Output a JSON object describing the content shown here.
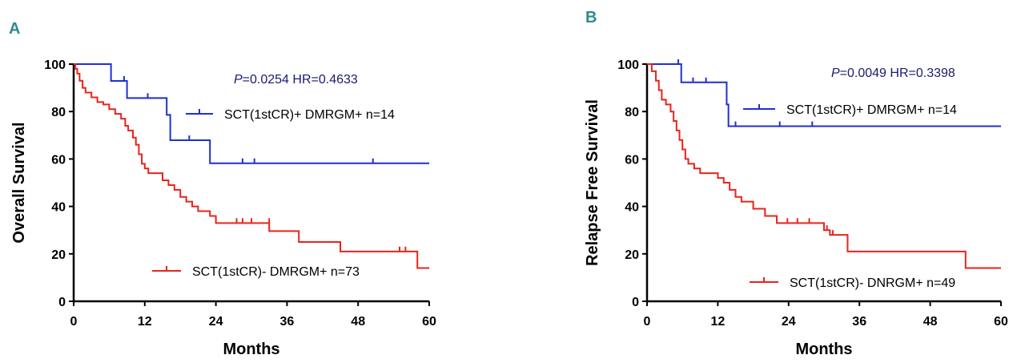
{
  "chart_data": [
    {
      "type": "line",
      "panel_label": "A",
      "title": "",
      "xlabel": "Months",
      "ylabel": "Overall Survival",
      "xlim": [
        0,
        60
      ],
      "ylim": [
        0,
        100
      ],
      "x_ticks": [
        0,
        12,
        24,
        36,
        48,
        60
      ],
      "y_ticks": [
        0,
        20,
        40,
        60,
        80,
        100
      ],
      "grid": false,
      "legend_position": "inside",
      "annotation": {
        "p_prefix": "P",
        "p_value": "=0.0254",
        "hr": "HR=0.4633"
      },
      "series": [
        {
          "name": "SCT(1stCR)+ DMRGM+ n=14",
          "color": "#1f2fd6",
          "steps": [
            [
              0,
              100
            ],
            [
              6.3,
              92.9
            ],
            [
              9,
              85.7
            ],
            [
              15.7,
              78.6
            ],
            [
              16.3,
              67.9
            ],
            [
              23,
              58.2
            ],
            [
              60,
              58.2
            ]
          ],
          "censors": [
            [
              8.5,
              92.9
            ],
            [
              12.5,
              85.7
            ],
            [
              19.5,
              67.9
            ],
            [
              28.5,
              58.2
            ],
            [
              30.5,
              58.2
            ],
            [
              50.5,
              58.2
            ]
          ]
        },
        {
          "name": "SCT(1stCR)- DMRGM+ n=73",
          "color": "#e8241c",
          "steps": [
            [
              0,
              100
            ],
            [
              0.3,
              98
            ],
            [
              0.6,
              96
            ],
            [
              1,
              93
            ],
            [
              1.5,
              90
            ],
            [
              2,
              88
            ],
            [
              3,
              86
            ],
            [
              4,
              84
            ],
            [
              5,
              83
            ],
            [
              6,
              81
            ],
            [
              7,
              79
            ],
            [
              8,
              77
            ],
            [
              8.7,
              74
            ],
            [
              9.2,
              72
            ],
            [
              10,
              69
            ],
            [
              10.5,
              66
            ],
            [
              11,
              62
            ],
            [
              11.5,
              58
            ],
            [
              12,
              56
            ],
            [
              12.6,
              54
            ],
            [
              15,
              51
            ],
            [
              16,
              49
            ],
            [
              17,
              47
            ],
            [
              18,
              44
            ],
            [
              19,
              42
            ],
            [
              20,
              40
            ],
            [
              21,
              38
            ],
            [
              23,
              36
            ],
            [
              24,
              33
            ],
            [
              33,
              29.6
            ],
            [
              38,
              25
            ],
            [
              45,
              21
            ],
            [
              58,
              14
            ],
            [
              60,
              14
            ]
          ],
          "censors": [
            [
              27.5,
              33
            ],
            [
              28.5,
              33
            ],
            [
              30,
              33
            ],
            [
              33,
              33
            ],
            [
              55,
              21
            ],
            [
              56,
              21
            ]
          ]
        }
      ]
    },
    {
      "type": "line",
      "panel_label": "B",
      "title": "",
      "xlabel": "Months",
      "ylabel": "Relapse Free Survival",
      "xlim": [
        0,
        60
      ],
      "ylim": [
        0,
        100
      ],
      "x_ticks": [
        0,
        12,
        24,
        36,
        48,
        60
      ],
      "y_ticks": [
        0,
        20,
        40,
        60,
        80,
        100
      ],
      "grid": false,
      "legend_position": "inside",
      "annotation": {
        "p_prefix": "P",
        "p_value": "=0.0049",
        "hr": "HR=0.3398"
      },
      "series": [
        {
          "name": "SCT(1stCR)+ DMRGM+ n=14",
          "color": "#1f2fd6",
          "steps": [
            [
              0,
              100
            ],
            [
              5.8,
              92.3
            ],
            [
              13.5,
              83
            ],
            [
              13.8,
              73.8
            ],
            [
              60,
              73.8
            ]
          ],
          "censors": [
            [
              5.3,
              100
            ],
            [
              7.8,
              92.3
            ],
            [
              10,
              92.3
            ],
            [
              15,
              73.8
            ],
            [
              22.5,
              73.8
            ],
            [
              28,
              73.8
            ]
          ]
        },
        {
          "name": "SCT(1stCR)- DNRGM+ n=49",
          "color": "#e8241c",
          "steps": [
            [
              0,
              100
            ],
            [
              0.8,
              97
            ],
            [
              1.5,
              93
            ],
            [
              2,
              89
            ],
            [
              2.5,
              85
            ],
            [
              3.2,
              83
            ],
            [
              4,
              80
            ],
            [
              4.5,
              76
            ],
            [
              5,
              72
            ],
            [
              5.5,
              68
            ],
            [
              6,
              64
            ],
            [
              6.5,
              60
            ],
            [
              7,
              58
            ],
            [
              8,
              56
            ],
            [
              9,
              54
            ],
            [
              12,
              52
            ],
            [
              13,
              50
            ],
            [
              14,
              47
            ],
            [
              15,
              44
            ],
            [
              16,
              42
            ],
            [
              18,
              39
            ],
            [
              20,
              36
            ],
            [
              22,
              33
            ],
            [
              30,
              30
            ],
            [
              31,
              28
            ],
            [
              34,
              21
            ],
            [
              54,
              14
            ],
            [
              60,
              14
            ]
          ],
          "censors": [
            [
              23.8,
              33
            ],
            [
              25.5,
              33
            ],
            [
              27.5,
              33
            ],
            [
              30.5,
              30
            ],
            [
              31.5,
              28
            ]
          ]
        }
      ]
    }
  ]
}
